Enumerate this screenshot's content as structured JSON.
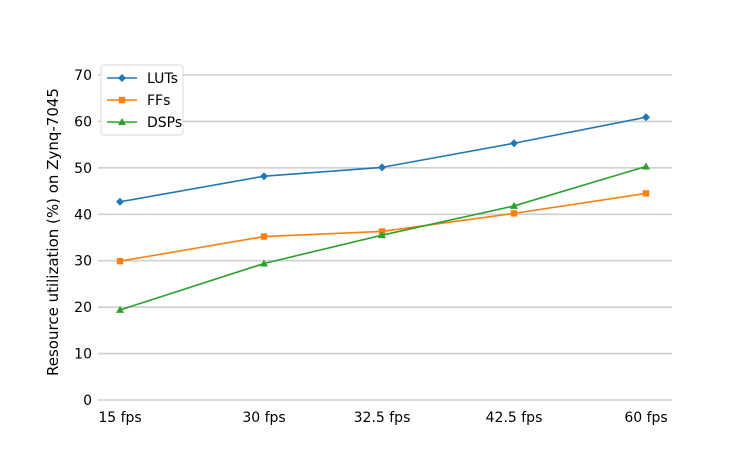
{
  "chart_data": {
    "type": "line",
    "categories": [
      "15 fps",
      "30 fps",
      "32.5 fps",
      "42.5 fps",
      "60 fps"
    ],
    "series": [
      {
        "name": "LUTs",
        "values": [
          42.7,
          48.2,
          50.1,
          55.3,
          60.9
        ],
        "color": "#1f77b4",
        "marker": "diamond"
      },
      {
        "name": "FFs",
        "values": [
          29.9,
          35.2,
          36.3,
          40.2,
          44.5
        ],
        "color": "#ff7f0e",
        "marker": "square"
      },
      {
        "name": "DSPs",
        "values": [
          19.4,
          29.4,
          35.5,
          41.8,
          50.3
        ],
        "color": "#2ca02c",
        "marker": "triangle"
      }
    ],
    "ylabel": "Resource utilization (%) on Zynq-7045",
    "ylim": [
      0,
      70
    ],
    "yticks": [
      0,
      10,
      20,
      30,
      40,
      50,
      60,
      70
    ],
    "grid": "horizontal",
    "legend": "top-left"
  }
}
